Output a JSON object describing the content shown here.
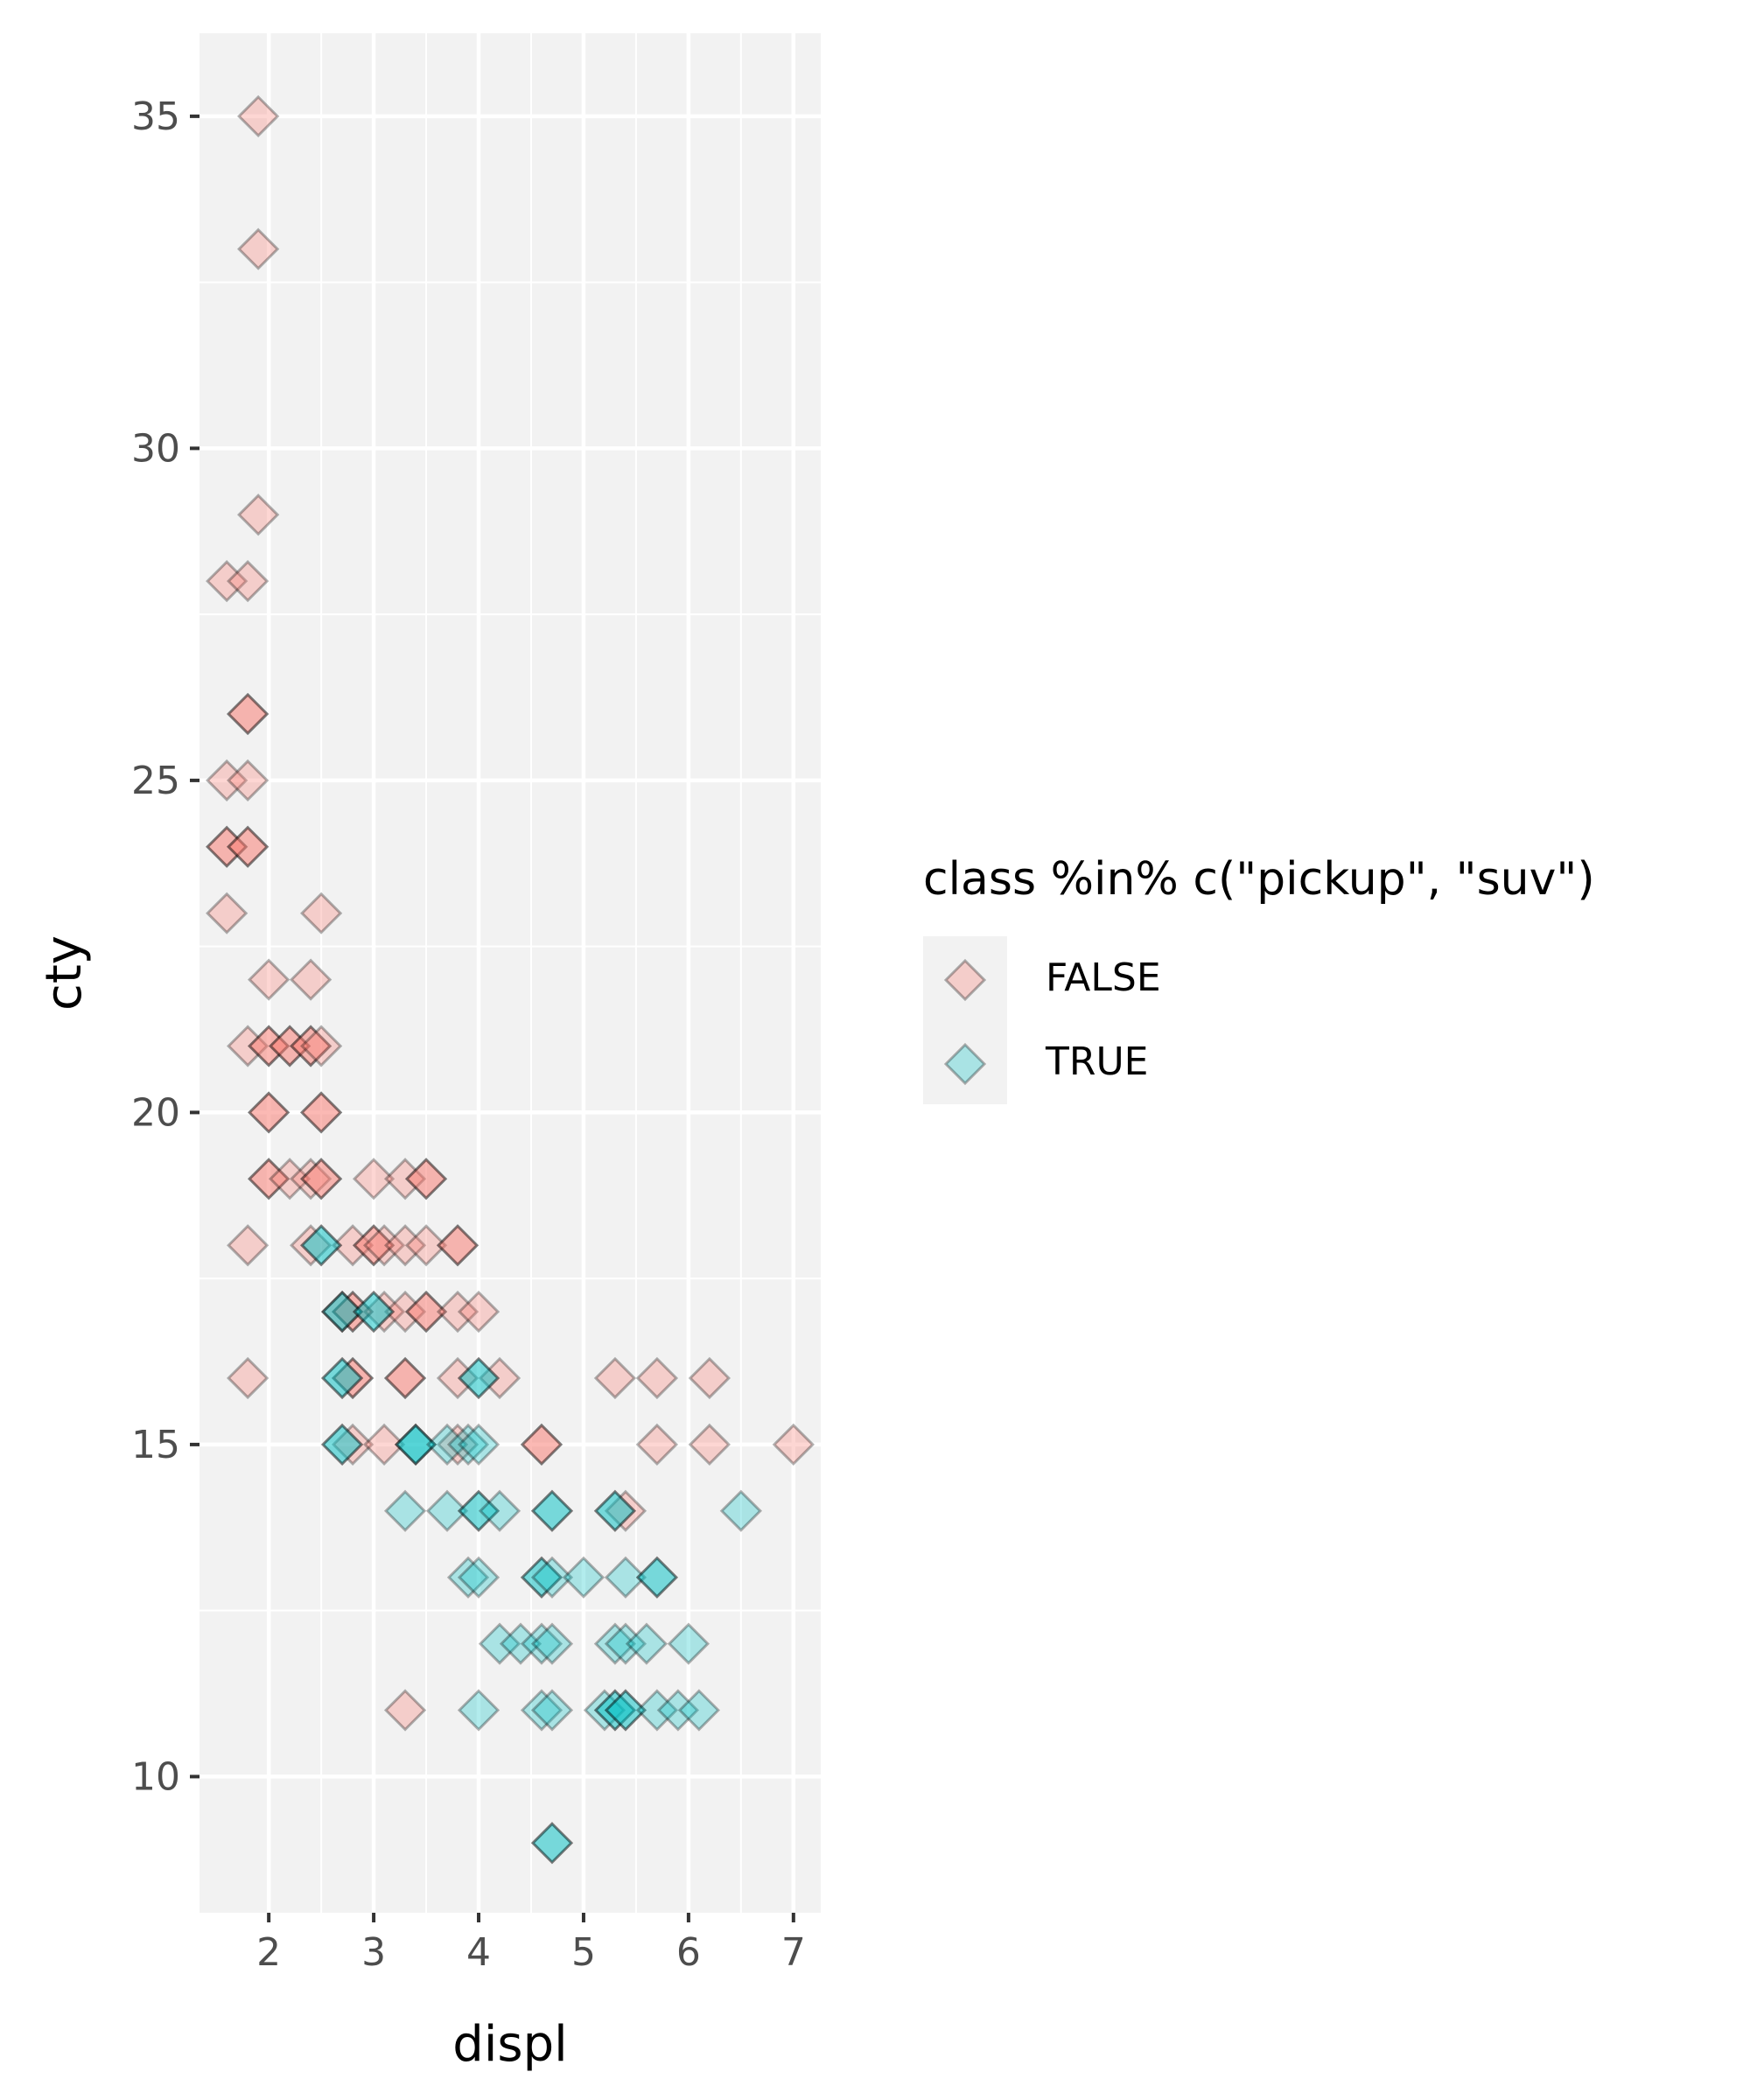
{
  "chart_data": {
    "type": "scatter",
    "title": "",
    "xlabel": "displ",
    "ylabel": "cty",
    "xlim": [
      1.34,
      7.26
    ],
    "ylim": [
      7.95,
      36.25
    ],
    "xticks": [
      2,
      3,
      4,
      5,
      6,
      7
    ],
    "yticks": [
      10,
      15,
      20,
      25,
      30,
      35
    ],
    "grid": true,
    "legend": {
      "title": "class %in% c(\"pickup\", \"suv\")",
      "position": "right"
    },
    "marker": "diamond",
    "colors": {
      "FALSE": "#F8766D",
      "TRUE": "#00BFC4"
    },
    "series": [
      {
        "name": "FALSE",
        "points": [
          [
            1.9,
            35
          ],
          [
            1.9,
            33
          ],
          [
            1.9,
            29
          ],
          [
            1.6,
            28
          ],
          [
            1.8,
            28
          ],
          [
            1.8,
            26
          ],
          [
            1.8,
            26
          ],
          [
            1.6,
            25
          ],
          [
            1.8,
            25
          ],
          [
            1.6,
            24
          ],
          [
            1.6,
            24
          ],
          [
            1.8,
            24
          ],
          [
            1.8,
            24
          ],
          [
            1.6,
            23
          ],
          [
            2.5,
            23
          ],
          [
            2.0,
            22
          ],
          [
            2.4,
            22
          ],
          [
            1.8,
            21
          ],
          [
            2.0,
            21
          ],
          [
            2.0,
            21
          ],
          [
            2.2,
            21
          ],
          [
            2.2,
            21
          ],
          [
            2.4,
            21
          ],
          [
            2.4,
            21
          ],
          [
            2.5,
            21
          ],
          [
            2.0,
            20
          ],
          [
            2.0,
            20
          ],
          [
            2.5,
            20
          ],
          [
            2.5,
            20
          ],
          [
            2.0,
            19
          ],
          [
            2.0,
            19
          ],
          [
            2.2,
            19
          ],
          [
            2.4,
            19
          ],
          [
            2.5,
            19
          ],
          [
            2.5,
            19
          ],
          [
            3.0,
            19
          ],
          [
            3.3,
            19
          ],
          [
            3.5,
            19
          ],
          [
            3.5,
            19
          ],
          [
            1.8,
            18
          ],
          [
            2.4,
            18
          ],
          [
            2.8,
            18
          ],
          [
            3.0,
            18
          ],
          [
            3.0,
            18
          ],
          [
            3.1,
            18
          ],
          [
            3.3,
            18
          ],
          [
            3.5,
            18
          ],
          [
            3.8,
            18
          ],
          [
            3.8,
            18
          ],
          [
            2.7,
            17
          ],
          [
            2.8,
            17
          ],
          [
            2.8,
            17
          ],
          [
            3.1,
            17
          ],
          [
            3.3,
            17
          ],
          [
            3.5,
            17
          ],
          [
            3.5,
            17
          ],
          [
            3.8,
            17
          ],
          [
            4.0,
            17
          ],
          [
            1.8,
            16
          ],
          [
            2.8,
            16
          ],
          [
            2.8,
            16
          ],
          [
            3.3,
            16
          ],
          [
            3.3,
            16
          ],
          [
            3.8,
            16
          ],
          [
            4.2,
            16
          ],
          [
            5.3,
            16
          ],
          [
            5.7,
            16
          ],
          [
            6.2,
            16
          ],
          [
            2.8,
            15
          ],
          [
            3.1,
            15
          ],
          [
            3.8,
            15
          ],
          [
            4.6,
            15
          ],
          [
            4.6,
            15
          ],
          [
            5.7,
            15
          ],
          [
            6.2,
            15
          ],
          [
            7.0,
            15
          ],
          [
            5.4,
            14
          ],
          [
            3.3,
            11
          ]
        ]
      },
      {
        "name": "TRUE",
        "points": [
          [
            2.5,
            18
          ],
          [
            2.5,
            18
          ],
          [
            2.7,
            17
          ],
          [
            2.7,
            17
          ],
          [
            3.0,
            17
          ],
          [
            3.0,
            17
          ],
          [
            2.7,
            16
          ],
          [
            2.7,
            16
          ],
          [
            4.0,
            16
          ],
          [
            4.0,
            16
          ],
          [
            2.7,
            15
          ],
          [
            2.7,
            15
          ],
          [
            3.4,
            15
          ],
          [
            3.4,
            15
          ],
          [
            3.4,
            15
          ],
          [
            3.7,
            15
          ],
          [
            3.9,
            15
          ],
          [
            4.0,
            15
          ],
          [
            3.3,
            14
          ],
          [
            3.7,
            14
          ],
          [
            4.0,
            14
          ],
          [
            4.0,
            14
          ],
          [
            4.2,
            14
          ],
          [
            4.7,
            14
          ],
          [
            4.7,
            14
          ],
          [
            5.3,
            14
          ],
          [
            5.3,
            14
          ],
          [
            6.5,
            14
          ],
          [
            3.9,
            13
          ],
          [
            4.0,
            13
          ],
          [
            4.6,
            13
          ],
          [
            4.6,
            13
          ],
          [
            4.7,
            13
          ],
          [
            5.0,
            13
          ],
          [
            5.4,
            13
          ],
          [
            5.7,
            13
          ],
          [
            5.7,
            13
          ],
          [
            4.2,
            12
          ],
          [
            4.4,
            12
          ],
          [
            4.6,
            12
          ],
          [
            4.7,
            12
          ],
          [
            5.3,
            12
          ],
          [
            5.4,
            12
          ],
          [
            5.6,
            12
          ],
          [
            6.0,
            12
          ],
          [
            4.0,
            11
          ],
          [
            4.6,
            11
          ],
          [
            4.7,
            11
          ],
          [
            5.2,
            11
          ],
          [
            5.3,
            11
          ],
          [
            5.3,
            11
          ],
          [
            5.4,
            11
          ],
          [
            5.4,
            11
          ],
          [
            5.7,
            11
          ],
          [
            5.9,
            11
          ],
          [
            6.1,
            11
          ],
          [
            4.7,
            9
          ],
          [
            4.7,
            9
          ]
        ]
      }
    ]
  }
}
